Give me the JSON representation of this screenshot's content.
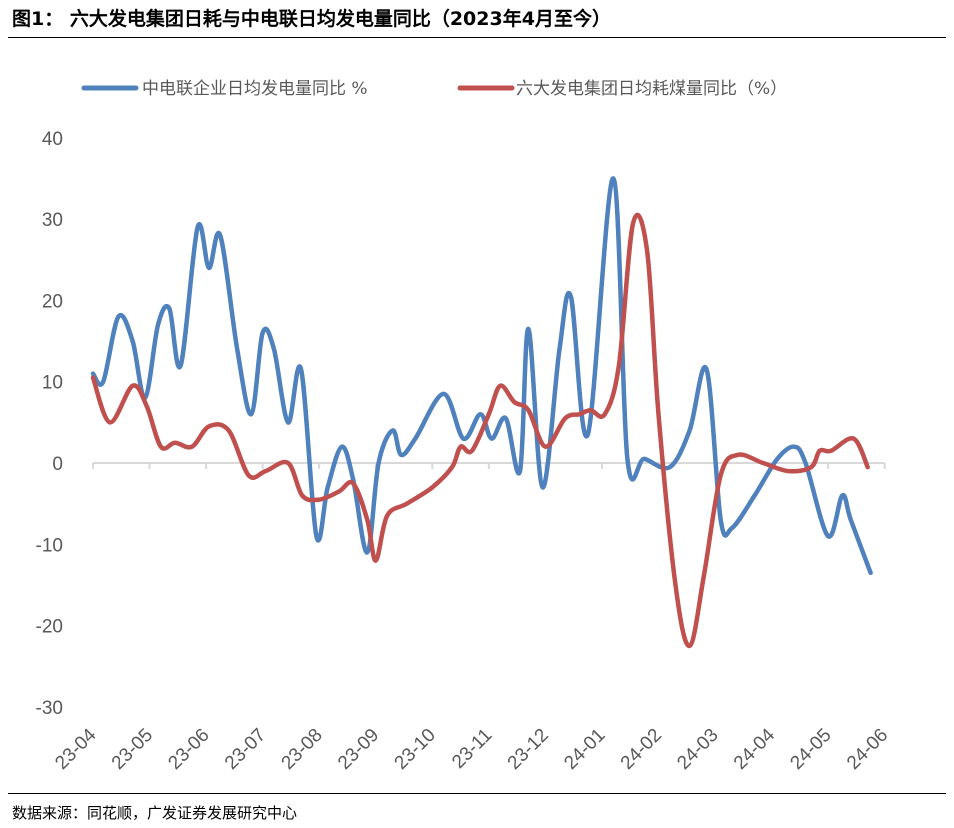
{
  "title": "图1： 六大发电集团日耗与中电联日均发电量同比（2023年4月至今）",
  "source": "数据来源：同花顺，广发证券发展研究中心",
  "colors": {
    "series_blue": "#4f81bd",
    "series_red": "#c0504d",
    "zero_line": "#d9d9d9",
    "tick_text": "#595959"
  },
  "chart_data": {
    "type": "line",
    "title": "",
    "xlabel": "",
    "ylabel": "",
    "ylim": [
      -30,
      40
    ],
    "yticks": [
      "40",
      "30",
      "20",
      "10",
      "0",
      "-10",
      "-20",
      "-30"
    ],
    "x_ticks": [
      "23-04",
      "23-05",
      "23-06",
      "23-07",
      "23-08",
      "23-09",
      "23-10",
      "23-11",
      "23-12",
      "24-01",
      "24-02",
      "24-03",
      "24-04",
      "24-05",
      "24-06"
    ],
    "grid": false,
    "legend_position": "top",
    "series": [
      {
        "name": "中电联企业日均发电量同比 %",
        "color": "#4f81bd",
        "points": [
          [
            0.0,
            11
          ],
          [
            0.18,
            10
          ],
          [
            0.45,
            18
          ],
          [
            0.7,
            15
          ],
          [
            0.92,
            8
          ],
          [
            1.15,
            17
          ],
          [
            1.35,
            19
          ],
          [
            1.55,
            12
          ],
          [
            1.85,
            29
          ],
          [
            2.05,
            24
          ],
          [
            2.25,
            28
          ],
          [
            2.55,
            14
          ],
          [
            2.8,
            6
          ],
          [
            3.0,
            16
          ],
          [
            3.2,
            14
          ],
          [
            3.45,
            5
          ],
          [
            3.68,
            11.5
          ],
          [
            3.95,
            -9
          ],
          [
            4.15,
            -3
          ],
          [
            4.4,
            2
          ],
          [
            4.6,
            -2
          ],
          [
            4.85,
            -11
          ],
          [
            5.05,
            0
          ],
          [
            5.3,
            4
          ],
          [
            5.45,
            1
          ],
          [
            5.7,
            3
          ],
          [
            6.2,
            8.5
          ],
          [
            6.55,
            3
          ],
          [
            6.85,
            6
          ],
          [
            7.05,
            3
          ],
          [
            7.3,
            5.5
          ],
          [
            7.55,
            -1
          ],
          [
            7.7,
            16.5
          ],
          [
            7.95,
            -3
          ],
          [
            8.25,
            14
          ],
          [
            8.45,
            20.5
          ],
          [
            8.75,
            3.5
          ],
          [
            9.2,
            35
          ],
          [
            9.45,
            0.5
          ],
          [
            9.75,
            0.5
          ],
          [
            10.2,
            -0.5
          ],
          [
            10.55,
            4
          ],
          [
            10.85,
            11.5
          ],
          [
            11.1,
            -7
          ],
          [
            11.3,
            -8
          ],
          [
            11.7,
            -4
          ],
          [
            12.1,
            0.5
          ],
          [
            12.4,
            2
          ],
          [
            12.6,
            0
          ],
          [
            13.0,
            -9
          ],
          [
            13.25,
            -4
          ],
          [
            13.4,
            -7
          ],
          [
            13.75,
            -13.5
          ]
        ]
      },
      {
        "name": "六大发电集团日均耗煤量同比（%）",
        "color": "#c0504d",
        "points": [
          [
            0.0,
            10.5
          ],
          [
            0.3,
            5
          ],
          [
            0.7,
            9.5
          ],
          [
            0.95,
            7
          ],
          [
            1.2,
            2
          ],
          [
            1.45,
            2.5
          ],
          [
            1.75,
            2
          ],
          [
            2.05,
            4.5
          ],
          [
            2.4,
            4
          ],
          [
            2.75,
            -1.5
          ],
          [
            3.05,
            -1
          ],
          [
            3.45,
            0
          ],
          [
            3.7,
            -4
          ],
          [
            4.0,
            -4.5
          ],
          [
            4.35,
            -3.5
          ],
          [
            4.6,
            -2.5
          ],
          [
            4.85,
            -7
          ],
          [
            5.0,
            -12
          ],
          [
            5.2,
            -6.5
          ],
          [
            5.55,
            -5
          ],
          [
            6.0,
            -3
          ],
          [
            6.35,
            -0.5
          ],
          [
            6.5,
            2
          ],
          [
            6.7,
            1.5
          ],
          [
            7.0,
            6
          ],
          [
            7.2,
            9.5
          ],
          [
            7.45,
            7.5
          ],
          [
            7.7,
            6.5
          ],
          [
            8.0,
            2
          ],
          [
            8.35,
            5.5
          ],
          [
            8.6,
            6
          ],
          [
            8.8,
            6.5
          ],
          [
            9.05,
            6
          ],
          [
            9.3,
            12
          ],
          [
            9.55,
            29.5
          ],
          [
            9.8,
            26
          ],
          [
            10.0,
            6
          ],
          [
            10.3,
            -15
          ],
          [
            10.55,
            -22.5
          ],
          [
            10.8,
            -14
          ],
          [
            11.1,
            -1.5
          ],
          [
            11.4,
            1
          ],
          [
            11.85,
            0
          ],
          [
            12.3,
            -1
          ],
          [
            12.7,
            -0.5
          ],
          [
            12.85,
            1.5
          ],
          [
            13.05,
            1.5
          ],
          [
            13.45,
            3
          ],
          [
            13.7,
            -0.5
          ]
        ]
      }
    ]
  }
}
